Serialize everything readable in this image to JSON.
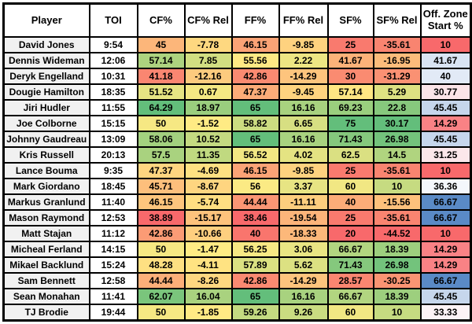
{
  "chart_data": {
    "type": "table",
    "columns": [
      "Player",
      "TOI",
      "CF%",
      "CF% Rel",
      "FF%",
      "FF% Rel",
      "SF%",
      "SF% Rel",
      "Off. Zone Start %"
    ],
    "column_keys": [
      "player",
      "toi",
      "cf",
      "cf_rel",
      "ff",
      "ff_rel",
      "sf",
      "sf_rel",
      "ozs"
    ],
    "rows": [
      {
        "player": "David Jones",
        "toi": "9:54",
        "cf": 45,
        "cf_rel": -7.78,
        "ff": 46.15,
        "ff_rel": -9.85,
        "sf": 25,
        "sf_rel": -35.61,
        "ozs": 10
      },
      {
        "player": "Dennis Wideman",
        "toi": "12:06",
        "cf": 57.14,
        "cf_rel": 7.85,
        "ff": 55.56,
        "ff_rel": 2.22,
        "sf": 41.67,
        "sf_rel": -16.95,
        "ozs": 41.67
      },
      {
        "player": "Deryk Engelland",
        "toi": "10:31",
        "cf": 41.18,
        "cf_rel": -12.16,
        "ff": 42.86,
        "ff_rel": -14.29,
        "sf": 30,
        "sf_rel": -31.29,
        "ozs": 40
      },
      {
        "player": "Dougie Hamilton",
        "toi": "18:35",
        "cf": 51.52,
        "cf_rel": 0.67,
        "ff": 47.37,
        "ff_rel": -9.45,
        "sf": 57.14,
        "sf_rel": 5.29,
        "ozs": 30.77
      },
      {
        "player": "Jiri Hudler",
        "toi": "11:55",
        "cf": 64.29,
        "cf_rel": 18.97,
        "ff": 65,
        "ff_rel": 16.16,
        "sf": 69.23,
        "sf_rel": 22.8,
        "ozs": 45.45
      },
      {
        "player": "Joe Colborne",
        "toi": "15:15",
        "cf": 50,
        "cf_rel": -1.52,
        "ff": 58.82,
        "ff_rel": 6.65,
        "sf": 75,
        "sf_rel": 30.17,
        "ozs": 14.29
      },
      {
        "player": "Johnny Gaudreau",
        "toi": "13:09",
        "cf": 58.06,
        "cf_rel": 10.52,
        "ff": 65,
        "ff_rel": 16.16,
        "sf": 71.43,
        "sf_rel": 26.98,
        "ozs": 45.45
      },
      {
        "player": "Kris Russell",
        "toi": "20:13",
        "cf": 57.5,
        "cf_rel": 11.35,
        "ff": 56.52,
        "ff_rel": 4.02,
        "sf": 62.5,
        "sf_rel": 14.5,
        "ozs": 31.25
      },
      {
        "player": "Lance Bouma",
        "toi": "9:35",
        "cf": 47.37,
        "cf_rel": -4.69,
        "ff": 46.15,
        "ff_rel": -9.85,
        "sf": 25,
        "sf_rel": -35.61,
        "ozs": 10
      },
      {
        "player": "Mark Giordano",
        "toi": "18:45",
        "cf": 45.71,
        "cf_rel": -8.67,
        "ff": 56,
        "ff_rel": 3.37,
        "sf": 60,
        "sf_rel": 10,
        "ozs": 36.36
      },
      {
        "player": "Markus Granlund",
        "toi": "11:40",
        "cf": 46.15,
        "cf_rel": -5.74,
        "ff": 44.44,
        "ff_rel": -11.11,
        "sf": 40,
        "sf_rel": -15.56,
        "ozs": 66.67
      },
      {
        "player": "Mason Raymond",
        "toi": "12:53",
        "cf": 38.89,
        "cf_rel": -15.17,
        "ff": 38.46,
        "ff_rel": -19.54,
        "sf": 25,
        "sf_rel": -35.61,
        "ozs": 66.67
      },
      {
        "player": "Matt Stajan",
        "toi": "11:12",
        "cf": 42.86,
        "cf_rel": -10.66,
        "ff": 40,
        "ff_rel": -18.33,
        "sf": 20,
        "sf_rel": -44.52,
        "ozs": 10
      },
      {
        "player": "Micheal Ferland",
        "toi": "14:15",
        "cf": 50,
        "cf_rel": -1.47,
        "ff": 56.25,
        "ff_rel": 3.06,
        "sf": 66.67,
        "sf_rel": 18.39,
        "ozs": 14.29
      },
      {
        "player": "Mikael Backlund",
        "toi": "15:24",
        "cf": 48.28,
        "cf_rel": -4.11,
        "ff": 57.89,
        "ff_rel": 5.62,
        "sf": 71.43,
        "sf_rel": 26.98,
        "ozs": 14.29
      },
      {
        "player": "Sam Bennett",
        "toi": "12:58",
        "cf": 44.44,
        "cf_rel": -8.26,
        "ff": 42.86,
        "ff_rel": -14.29,
        "sf": 28.57,
        "sf_rel": -30.25,
        "ozs": 66.67
      },
      {
        "player": "Sean Monahan",
        "toi": "11:41",
        "cf": 62.07,
        "cf_rel": 16.04,
        "ff": 65,
        "ff_rel": 16.16,
        "sf": 66.67,
        "sf_rel": 18.39,
        "ozs": 45.45
      },
      {
        "player": "TJ Brodie",
        "toi": "19:44",
        "cf": 50,
        "cf_rel": -1.85,
        "ff": 59.26,
        "ff_rel": 9.26,
        "sf": 60,
        "sf_rel": 10,
        "ozs": 33.33
      }
    ],
    "heatmap": {
      "red_yellow_green": {
        "min": "#F8696B",
        "mid": "#FFEB84",
        "max": "#63BE7B"
      },
      "red_white_blue": {
        "min": "#F8696B",
        "mid": "#FCFCFF",
        "max": "#5A8AC6"
      },
      "midpoint_rule": "50th percentile",
      "percent_columns_scale": "per-column",
      "rel_columns_scale": "shared across CF% Rel / FF% Rel / SF% Rel",
      "ozs_column_scale": "red_white_blue per-column"
    },
    "legend_position": "none",
    "title": ""
  }
}
